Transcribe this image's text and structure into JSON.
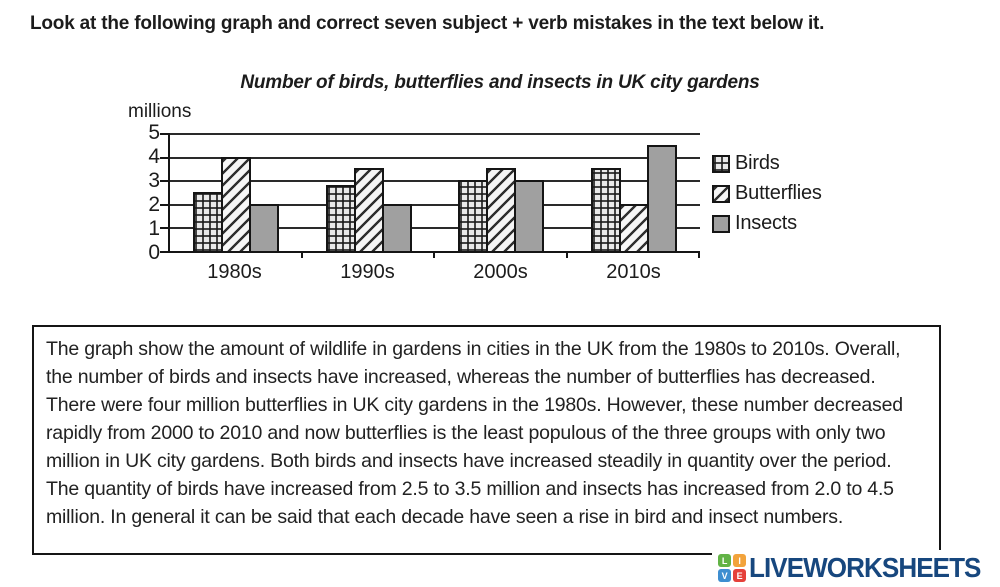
{
  "instruction": "Look at the following graph and correct seven subject + verb mistakes in the text below it.",
  "chart_data": {
    "type": "bar",
    "title": "Number of birds, butterflies and insects in UK city gardens",
    "ylabel": "millions",
    "xlabel": "",
    "categories": [
      "1980s",
      "1990s",
      "2000s",
      "2010s"
    ],
    "series": [
      {
        "name": "Birds",
        "pattern": "grid",
        "values": [
          2.5,
          2.8,
          3.0,
          3.5
        ]
      },
      {
        "name": "Butterflies",
        "pattern": "diagonal",
        "values": [
          4.0,
          3.5,
          3.5,
          2.0
        ]
      },
      {
        "name": "Insects",
        "pattern": "solid",
        "values": [
          2.0,
          2.0,
          3.0,
          4.5
        ]
      }
    ],
    "ylim": [
      0,
      5
    ],
    "yticks": [
      0,
      1,
      2,
      3,
      4,
      5
    ],
    "grid": true,
    "legend_position": "right"
  },
  "passage": {
    "text": "The graph show the amount of wildlife in gardens in cities in the UK from the 1980s to 2010s. Overall, the number of birds and insects have increased, whereas the number of butterflies has decreased. There were four million butterflies in UK city gardens in the 1980s. However, these number decreased rapidly from 2000 to 2010 and now butterflies is the least populous of the three groups with only two million in UK city gardens. Both birds and insects have increased steadily in quantity over the period. The quantity of birds have increased from 2.5 to 3.5 million and insects has increased from 2.0 to 4.5 million. In general it can be said that each decade have seen a rise in bird and insect numbers."
  },
  "footer": {
    "brand": "LIVEWORKSHEETS",
    "brand_color": "#17477e",
    "icon_tiles": [
      {
        "letter": "L",
        "color": "#62b346"
      },
      {
        "letter": "I",
        "color": "#f2a33c"
      },
      {
        "letter": "V",
        "color": "#3e8ed0"
      },
      {
        "letter": "E",
        "color": "#e5403a"
      }
    ]
  }
}
